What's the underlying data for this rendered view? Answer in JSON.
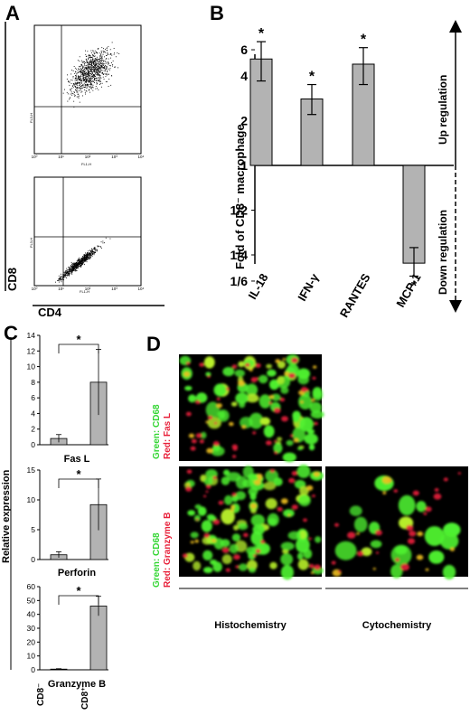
{
  "panels": {
    "A": {
      "letter": "A",
      "y_axis_label": "CD8",
      "x_axis_label": "CD4",
      "plot_y_label": "FL3-H",
      "plot_x_label": "FL1-H",
      "tick_labels": [
        "10⁰",
        "10¹",
        "10²",
        "10³",
        "10⁴"
      ]
    },
    "B": {
      "letter": "B",
      "right_top_label": "Up regulation",
      "right_bottom_label": "Down regulation"
    },
    "C": {
      "letter": "C",
      "y_label": "Relative expression",
      "x_categories": [
        "CD8⁻",
        "CD8⁺"
      ]
    },
    "D": {
      "letter": "D",
      "row1_label_green": "Green: CD68",
      "row1_label_red": "Red: Fas L",
      "row2_label_green": "Green: CD68",
      "row2_label_red": "Red: Granzyme B",
      "bottom_left": "Histochemistry",
      "bottom_right": "Cytochemistry"
    }
  },
  "chart_data": [
    {
      "panel": "B",
      "type": "bar",
      "ylabel": "Fold of CD8⁻ macrophage",
      "y_scale": "log2",
      "y_ticks": [
        "6",
        "4",
        "2",
        "1",
        "1/2",
        "1/4",
        "1/6"
      ],
      "categories": [
        "IL-18",
        "IFN-γ",
        "RANTES",
        "MCP-1"
      ],
      "values": [
        5.2,
        2.8,
        4.8,
        0.22
      ],
      "error_low": [
        3.7,
        2.2,
        3.5,
        0.18
      ],
      "error_high": [
        6.8,
        3.5,
        6.2,
        0.28
      ],
      "significance": [
        "*",
        "*",
        "*",
        "*"
      ]
    },
    {
      "panel": "C",
      "type": "bar",
      "title": "Fas L",
      "categories": [
        "CD8⁻",
        "CD8⁺"
      ],
      "values": [
        0.8,
        8.0
      ],
      "errors": [
        0.5,
        4.2
      ],
      "ylim": [
        0,
        14
      ],
      "yticks": [
        "0",
        "2",
        "4",
        "6",
        "8",
        "10",
        "12",
        "14"
      ],
      "significance": "*"
    },
    {
      "panel": "C",
      "type": "bar",
      "title": "Perforin",
      "categories": [
        "CD8⁻",
        "CD8⁺"
      ],
      "values": [
        0.8,
        9.2
      ],
      "errors": [
        0.5,
        4.3
      ],
      "ylim": [
        0,
        15
      ],
      "yticks": [
        "0",
        "5",
        "10",
        "15"
      ],
      "significance": "*"
    },
    {
      "panel": "C",
      "type": "bar",
      "title": "Granzyme B",
      "categories": [
        "CD8⁻",
        "CD8⁺"
      ],
      "values": [
        0.5,
        46
      ],
      "errors": [
        0.3,
        7
      ],
      "ylim": [
        0,
        60
      ],
      "yticks": [
        "0",
        "10",
        "20",
        "30",
        "40",
        "50",
        "60"
      ],
      "significance": "*"
    }
  ]
}
